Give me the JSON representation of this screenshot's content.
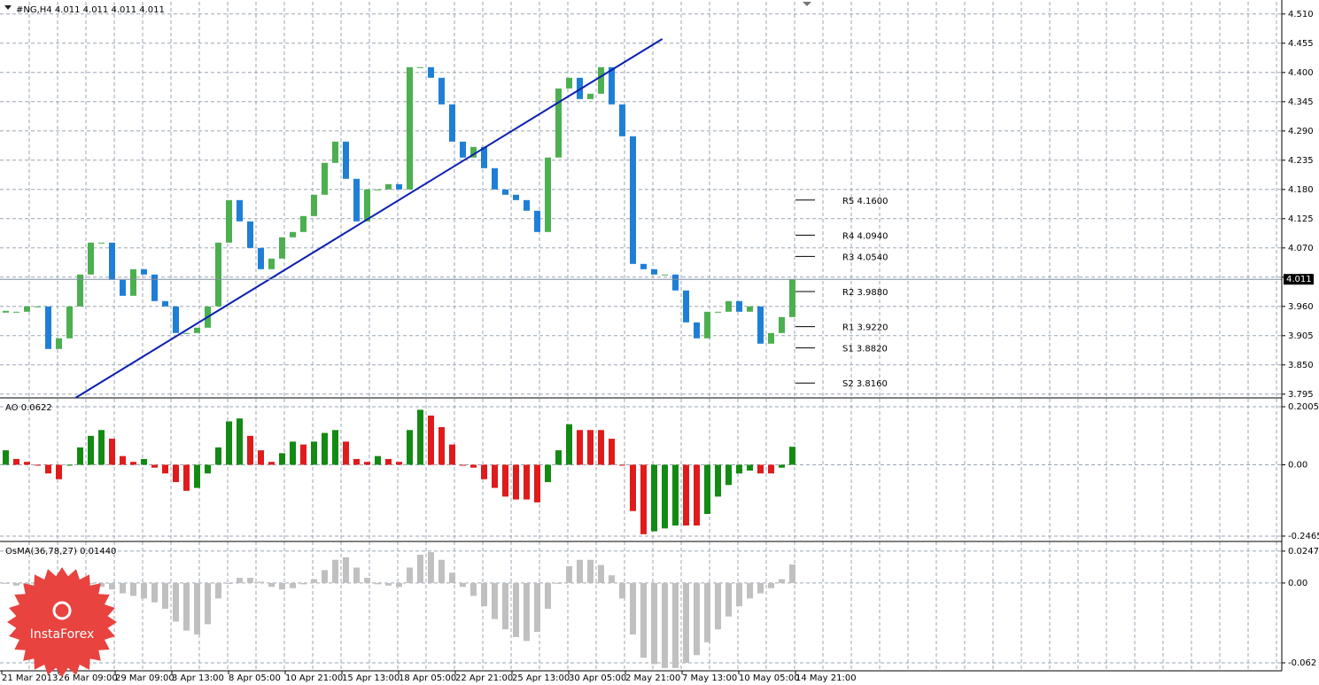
{
  "chart_data": [
    {
      "type": "candlestick",
      "title": "#NG,H4  4.011 4.011 4.011 4.011",
      "values": [
        3.95,
        3.95,
        3.96,
        3.96,
        3.88,
        3.9,
        3.96,
        4.02,
        4.08,
        4.08,
        4.01,
        3.98,
        4.03,
        4.02,
        3.97,
        3.96,
        3.91,
        3.91,
        3.92,
        3.96,
        4.08,
        4.16,
        4.12,
        4.07,
        4.03,
        4.05,
        4.09,
        4.1,
        4.13,
        4.17,
        4.23,
        4.27,
        4.2,
        4.12,
        4.18,
        4.18,
        4.19,
        4.18,
        4.41,
        4.41,
        4.39,
        4.34,
        4.27,
        4.24,
        4.26,
        4.22,
        4.18,
        4.17,
        4.16,
        4.14,
        4.1,
        4.24,
        4.37,
        4.39,
        4.35,
        4.36,
        4.41,
        4.34,
        4.28,
        4.04,
        4.03,
        4.02,
        4.02,
        3.99,
        3.93,
        3.9,
        3.95,
        3.95,
        3.97,
        3.95,
        3.96,
        3.89,
        3.91,
        3.94,
        4.011
      ],
      "colors": {
        "up": "#4caf50",
        "down": "#1f7fd6"
      },
      "ylim": [
        3.788,
        4.533
      ],
      "yticks": [
        {
          "value": 4.51,
          "label": "4.510"
        },
        4.455,
        {
          "value": 4.4,
          "label": "4.400"
        },
        4.345,
        {
          "value": 4.29,
          "label": "4.290"
        },
        4.235,
        {
          "value": 4.18,
          "label": "4.180"
        },
        4.125,
        {
          "value": 4.07,
          "label": "4.070"
        },
        4.015,
        {
          "value": 3.96,
          "label": "3.960"
        },
        3.905,
        {
          "value": 3.85,
          "label": "3.850"
        },
        3.795
      ],
      "last_price": 4.011,
      "trend_line": {
        "x": [
          6.6,
          61.8
        ],
        "values": [
          3.788,
          4.463
        ],
        "color": "#0a1fb0"
      },
      "pivots": [
        {
          "label": "R5 4.1600",
          "value": 4.16
        },
        {
          "label": "R4 4.0940",
          "value": 4.094
        },
        {
          "label": "R3 4.0540",
          "value": 4.054
        },
        {
          "label": "R2 3.9880",
          "value": 3.988
        },
        {
          "label": "R1 3.9220",
          "value": 3.922
        },
        {
          "label": "S1 3.8820",
          "value": 3.882
        },
        {
          "label": "S2 3.8160",
          "value": 3.816
        }
      ]
    },
    {
      "type": "bar",
      "title": "AO 0.0622",
      "values": [
        0.05,
        0.02,
        0.01,
        0.0,
        -0.03,
        -0.05,
        0.0,
        0.06,
        0.1,
        0.12,
        0.09,
        0.03,
        0.01,
        0.02,
        -0.01,
        -0.03,
        -0.06,
        -0.09,
        -0.08,
        -0.03,
        0.06,
        0.15,
        0.16,
        0.1,
        0.05,
        0.01,
        0.04,
        0.08,
        0.07,
        0.08,
        0.11,
        0.12,
        0.08,
        0.02,
        0.01,
        0.03,
        0.02,
        0.01,
        0.12,
        0.19,
        0.17,
        0.13,
        0.07,
        0.0,
        -0.01,
        -0.05,
        -0.08,
        -0.11,
        -0.12,
        -0.12,
        -0.13,
        -0.06,
        0.05,
        0.14,
        0.12,
        0.12,
        0.12,
        0.09,
        0.0,
        -0.16,
        -0.24,
        -0.23,
        -0.22,
        -0.21,
        -0.21,
        -0.21,
        -0.17,
        -0.11,
        -0.07,
        -0.03,
        -0.02,
        -0.03,
        -0.03,
        -0.01,
        0.0622
      ],
      "colors": {
        "up": "#138a13",
        "down": "#e01b1b"
      },
      "ylim": [
        -0.265,
        0.225
      ],
      "yticks": [
        0.2005,
        {
          "value": 0,
          "label": "0.00"
        },
        -0.2465
      ]
    },
    {
      "type": "bar",
      "title": "OsMA(36,78,27) 0.01440",
      "values": [
        0.0,
        -0.002,
        -0.003,
        -0.004,
        -0.004,
        -0.003,
        -0.002,
        -0.001,
        0.0,
        -0.003,
        -0.005,
        -0.008,
        -0.01,
        -0.012,
        -0.015,
        -0.02,
        -0.03,
        -0.037,
        -0.04,
        -0.032,
        -0.012,
        0.0,
        0.004,
        0.004,
        0.001,
        -0.003,
        -0.005,
        -0.004,
        -0.001,
        0.003,
        0.01,
        0.018,
        0.02,
        0.012,
        0.004,
        -0.001,
        -0.002,
        -0.003,
        0.012,
        0.022,
        0.024,
        0.018,
        0.008,
        -0.003,
        -0.01,
        -0.018,
        -0.028,
        -0.036,
        -0.042,
        -0.045,
        -0.038,
        -0.02,
        0.0,
        0.013,
        0.018,
        0.018,
        0.014,
        0.006,
        -0.012,
        -0.04,
        -0.058,
        -0.063,
        -0.066,
        -0.066,
        -0.062,
        -0.056,
        -0.046,
        -0.036,
        -0.026,
        -0.018,
        -0.012,
        -0.008,
        -0.004,
        0.003,
        0.0144
      ],
      "color": "#c0c0c0",
      "ylim": [
        -0.0682,
        0.0309
      ],
      "yticks": [
        0.02475,
        {
          "value": 0,
          "label": "0.00"
        },
        -0.062
      ]
    }
  ],
  "time_labels": [
    "21 Mar 2013",
    "26 Mar 09:00",
    "29 Mar 09:00",
    "3 Apr 13:00",
    "8 Apr 05:00",
    "10 Apr 21:00",
    "15 Apr 13:00",
    "18 Apr 05:00",
    "22 Apr 21:00",
    "25 Apr 13:00",
    "30 Apr 05:00",
    "2 May 21:00",
    "7 May 13:00",
    "10 May 05:00",
    "14 May 21:00"
  ],
  "logo": "InstaForex"
}
